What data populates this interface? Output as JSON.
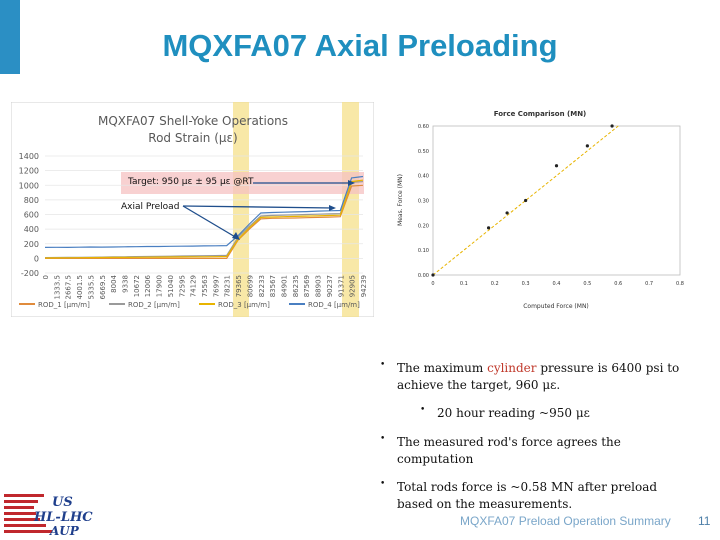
{
  "title": "MQXFA07 Axial Preloading",
  "chart_data": [
    {
      "type": "line",
      "title": "MQXFA07 Shell-Yoke Operations",
      "subtitle": "Rod Strain (με)",
      "ylim": [
        -200,
        1400
      ],
      "yticks": [
        -200,
        0,
        200,
        400,
        600,
        800,
        1000,
        1200,
        1400
      ],
      "x_tick_labels": [
        "0",
        "1333.5",
        "2667.5",
        "4001.5",
        "5335.5",
        "6669.5",
        "8004",
        "9338",
        "10672",
        "12006",
        "17900",
        "51040",
        "72595",
        "74129",
        "75563",
        "76997",
        "78231",
        "79365",
        "80699",
        "82233",
        "83567",
        "84901",
        "86235",
        "87569",
        "88903",
        "90237",
        "91371",
        "92905",
        "94239"
      ],
      "series": [
        {
          "name": "ROD_1 [μm/m]",
          "color": "#e08b3c",
          "values": [
            0,
            0,
            0,
            0,
            0,
            0,
            0,
            0,
            0,
            0,
            0,
            0,
            0,
            0,
            0,
            0,
            0,
            250,
            400,
            540,
            548,
            550,
            552,
            556,
            560,
            564,
            570,
            990,
            1000
          ]
        },
        {
          "name": "ROD_2 [μm/m]",
          "color": "#9a9a9a",
          "values": [
            10,
            12,
            14,
            15,
            16,
            18,
            20,
            22,
            24,
            26,
            28,
            30,
            32,
            34,
            36,
            38,
            40,
            290,
            440,
            580,
            588,
            592,
            596,
            600,
            604,
            608,
            612,
            1040,
            1050
          ]
        },
        {
          "name": "ROD_3 [μm/m]",
          "color": "#e8b400",
          "values": [
            5,
            6,
            8,
            9,
            10,
            12,
            13,
            14,
            15,
            16,
            18,
            19,
            20,
            21,
            22,
            23,
            25,
            260,
            420,
            560,
            566,
            570,
            574,
            578,
            582,
            586,
            590,
            1050,
            1070
          ]
        },
        {
          "name": "ROD_4 [μm/m]",
          "color": "#4a7fc1",
          "values": [
            150,
            152,
            150,
            153,
            155,
            154,
            156,
            158,
            160,
            162,
            163,
            165,
            166,
            168,
            170,
            172,
            175,
            310,
            470,
            620,
            628,
            632,
            636,
            640,
            646,
            650,
            655,
            1100,
            1120
          ]
        }
      ],
      "annotations": {
        "target": "Target: 950 με ± 95 με @RT",
        "axial": "Axial Preload"
      }
    },
    {
      "type": "scatter",
      "title": "Force Comparison (MN)",
      "xlabel": "Computed Force (MN)",
      "ylabel": "Meas. Force (MN)",
      "xlim": [
        0,
        0.6
      ],
      "ylim": [
        0,
        0.6
      ],
      "xticks": [
        "0",
        "0.1",
        "0.2",
        "0.3",
        "0.4",
        "0.5",
        "0.6",
        "0.7",
        "0.8"
      ],
      "yticks": [
        "0.00",
        "0.10",
        "0.20",
        "0.30",
        "0.40",
        "0.50",
        "0.60"
      ],
      "points": [
        {
          "x": 0.0,
          "y": 0.0
        },
        {
          "x": 0.18,
          "y": 0.19
        },
        {
          "x": 0.24,
          "y": 0.25
        },
        {
          "x": 0.3,
          "y": 0.3
        },
        {
          "x": 0.4,
          "y": 0.44
        },
        {
          "x": 0.5,
          "y": 0.52
        },
        {
          "x": 0.58,
          "y": 0.6
        }
      ]
    }
  ],
  "bullets": {
    "b1_pre": "The maximum ",
    "b1_red": "cylinder",
    "b1_post": " pressure is 6400 psi to achieve the target, 960 με.",
    "b1_sub": "20 hour reading ~950 με",
    "b2": "The measured rod's force agrees the computation",
    "b3": "Total rods force is ~0.58 MN after preload based on the measurements."
  },
  "footer": "MQXFA07 Preload Operation Summary",
  "page_number": "11",
  "logo": {
    "line1": "US",
    "line2": "HL-LHC",
    "line3": "AUP"
  },
  "colors": {
    "title": "#1f8fbf",
    "accent": "#2b8fc4",
    "highlight": "#f6e08a",
    "target_band": "#f5c2c2"
  }
}
